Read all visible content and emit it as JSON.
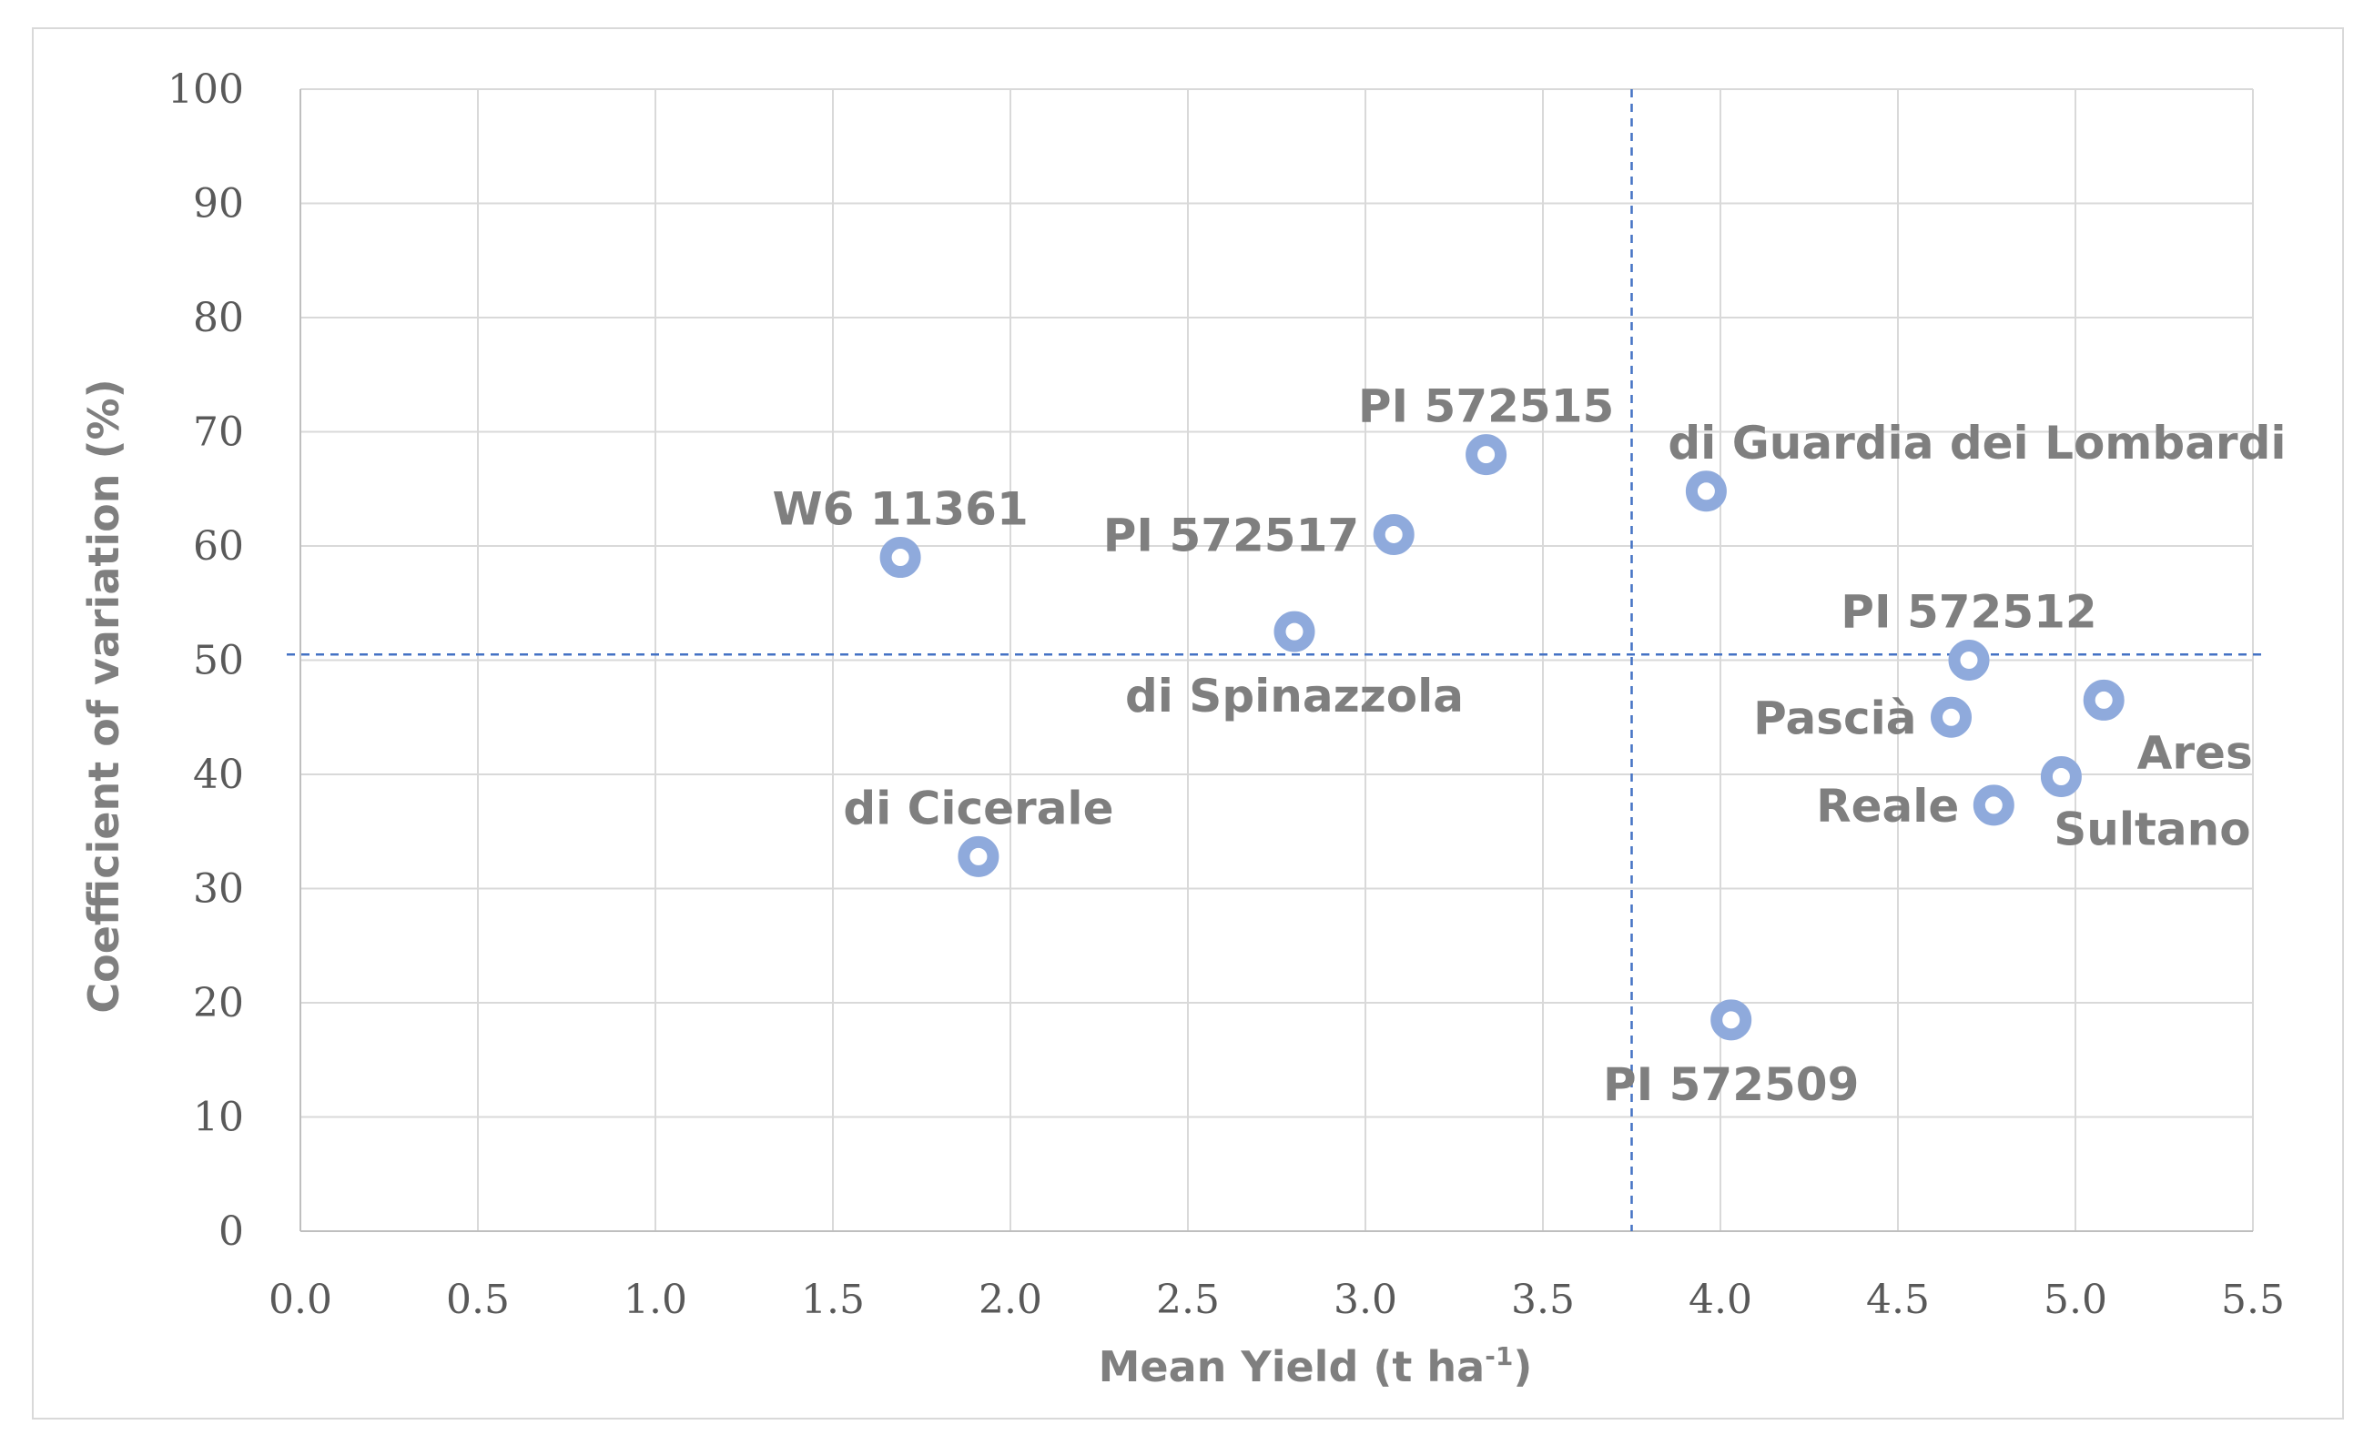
{
  "chart_data": {
    "type": "scatter",
    "title": "",
    "xlabel": "Mean Yield (t ha",
    "xlabel_sup": "-1",
    "xlabel_close": ")",
    "ylabel": "Coefficient of variation (%)",
    "xlim": [
      0,
      5.5
    ],
    "ylim": [
      0,
      100
    ],
    "x_ticks": [
      0.0,
      0.5,
      1.0,
      1.5,
      2.0,
      2.5,
      3.0,
      3.5,
      4.0,
      4.5,
      5.0,
      5.5
    ],
    "x_tick_labels": [
      "0.0",
      "0.5",
      "1.0",
      "1.5",
      "2.0",
      "2.5",
      "3.0",
      "3.5",
      "4.0",
      "4.5",
      "5.0",
      "5.5"
    ],
    "y_ticks": [
      0,
      10,
      20,
      30,
      40,
      50,
      60,
      70,
      80,
      90,
      100
    ],
    "y_tick_labels": [
      "0",
      "10",
      "20",
      "30",
      "40",
      "50",
      "60",
      "70",
      "80",
      "90",
      "100"
    ],
    "grid": true,
    "reference_lines": {
      "mean_x": 3.75,
      "mean_y": 50.5
    },
    "marker_color": "#8faadc",
    "points": [
      {
        "label": "W6 11361",
        "x": 1.69,
        "y": 59.0,
        "label_pos": "above"
      },
      {
        "label": "di Cicerale",
        "x": 1.91,
        "y": 32.8,
        "label_pos": "above"
      },
      {
        "label": "di Spinazzola",
        "x": 2.8,
        "y": 52.5,
        "label_pos": "below"
      },
      {
        "label": "PI 572517",
        "x": 3.08,
        "y": 61.0,
        "label_pos": "left"
      },
      {
        "label": "PI 572515",
        "x": 3.34,
        "y": 68.0,
        "label_pos": "above"
      },
      {
        "label": "di Guardia dei Lombardi",
        "x": 3.96,
        "y": 64.8,
        "label_pos": "above-right"
      },
      {
        "label": "PI 572509",
        "x": 4.03,
        "y": 18.5,
        "label_pos": "below"
      },
      {
        "label": "PI 572512",
        "x": 4.7,
        "y": 50.0,
        "label_pos": "above"
      },
      {
        "label": "Pascià",
        "x": 4.65,
        "y": 45.0,
        "label_pos": "left"
      },
      {
        "label": "Reale",
        "x": 4.77,
        "y": 37.3,
        "label_pos": "left"
      },
      {
        "label": "Sultano",
        "x": 4.96,
        "y": 39.8,
        "label_pos": "below-right"
      },
      {
        "label": "Ares",
        "x": 5.08,
        "y": 46.5,
        "label_pos": "below-right"
      }
    ]
  }
}
